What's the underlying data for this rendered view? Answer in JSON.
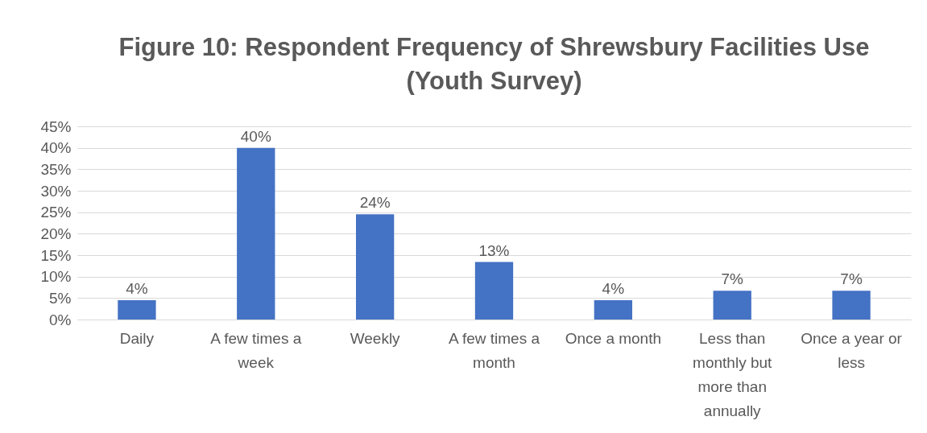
{
  "chart_data": {
    "type": "bar",
    "title": "Figure 10: Respondent Frequency of Shrewsbury Facilities Use (Youth Survey)",
    "categories": [
      "Daily",
      "A few times a week",
      "Weekly",
      "A few times a month",
      "Once a month",
      "Less than monthly but more than annually",
      "Once a year or less"
    ],
    "values": [
      4.5,
      40,
      24.5,
      13.4,
      4.5,
      6.7,
      6.7
    ],
    "value_labels": [
      "4%",
      "40%",
      "24%",
      "13%",
      "4%",
      "7%",
      "7%"
    ],
    "color": "#4472c4",
    "ylim": [
      0,
      45
    ],
    "yticks": [
      {
        "value": 0,
        "label": "0%"
      },
      {
        "value": 5,
        "label": "5%"
      },
      {
        "value": 10,
        "label": "10%"
      },
      {
        "value": 15,
        "label": "15%"
      },
      {
        "value": 20,
        "label": "20%"
      },
      {
        "value": 25,
        "label": "25%"
      },
      {
        "value": 30,
        "label": "30%"
      },
      {
        "value": 35,
        "label": "35%"
      },
      {
        "value": 40,
        "label": "40%"
      },
      {
        "value": 45,
        "label": "45%"
      }
    ],
    "grid": "y"
  }
}
